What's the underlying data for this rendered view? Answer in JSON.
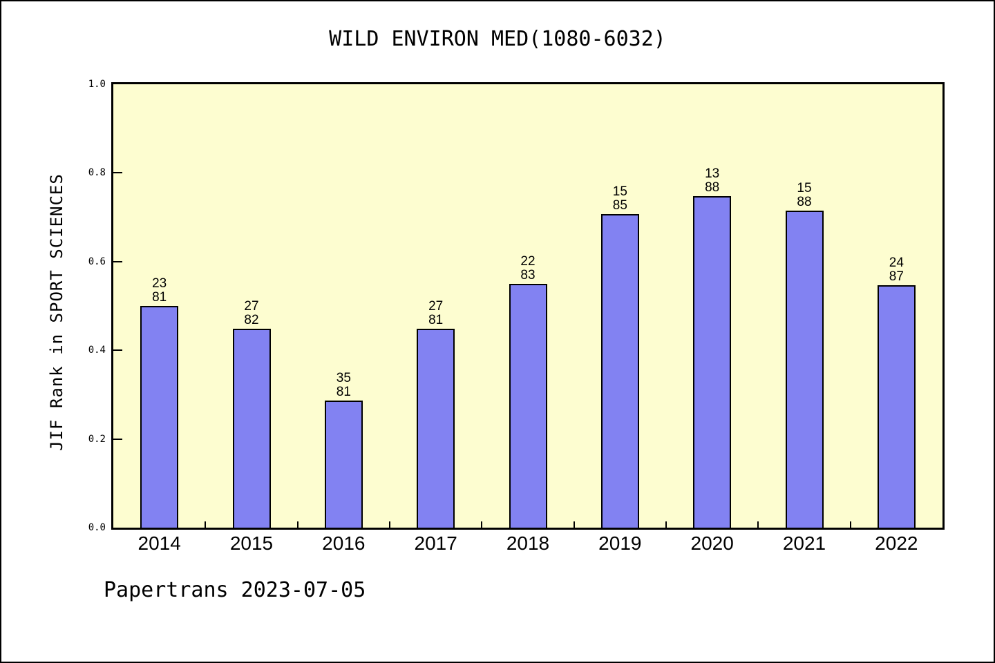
{
  "footer": {
    "text": "Papertrans 2023-07-05"
  },
  "colors": {
    "figure_bg": "#FFFFFF",
    "figure_border": "#000000",
    "plot_bg": "#FDFDD0",
    "bar_fill": "#8282F2",
    "bar_edge": "#000000",
    "text": "#000000"
  },
  "chart_data": {
    "type": "bar",
    "title": "WILD ENVIRON MED(1080-6032)",
    "ylabel": "JIF Rank in SPORT SCIENCES",
    "xlabel": "",
    "ylim": [
      0.0,
      1.0
    ],
    "ytick_labels": [
      "0.0",
      "0.2",
      "0.4",
      "0.6",
      "0.8",
      "1.0"
    ],
    "grid": false,
    "legend": false,
    "categories": [
      "2014",
      "2015",
      "2016",
      "2017",
      "2018",
      "2019",
      "2020",
      "2021",
      "2022"
    ],
    "series": [
      {
        "name": "rank",
        "values": [
          23,
          27,
          35,
          27,
          22,
          15,
          13,
          15,
          24
        ]
      },
      {
        "name": "total",
        "values": [
          81,
          82,
          81,
          81,
          83,
          85,
          88,
          88,
          87
        ]
      }
    ],
    "bar_label_lines": [
      [
        "23",
        "81"
      ],
      [
        "27",
        "82"
      ],
      [
        "35",
        "81"
      ],
      [
        "27",
        "81"
      ],
      [
        "22",
        "83"
      ],
      [
        "15",
        "85"
      ],
      [
        "13",
        "88"
      ],
      [
        "15",
        "88"
      ],
      [
        "24",
        "87"
      ]
    ],
    "bar_heights_fraction": [
      0.5,
      0.448,
      0.286,
      0.448,
      0.55,
      0.707,
      0.748,
      0.715,
      0.547
    ]
  }
}
